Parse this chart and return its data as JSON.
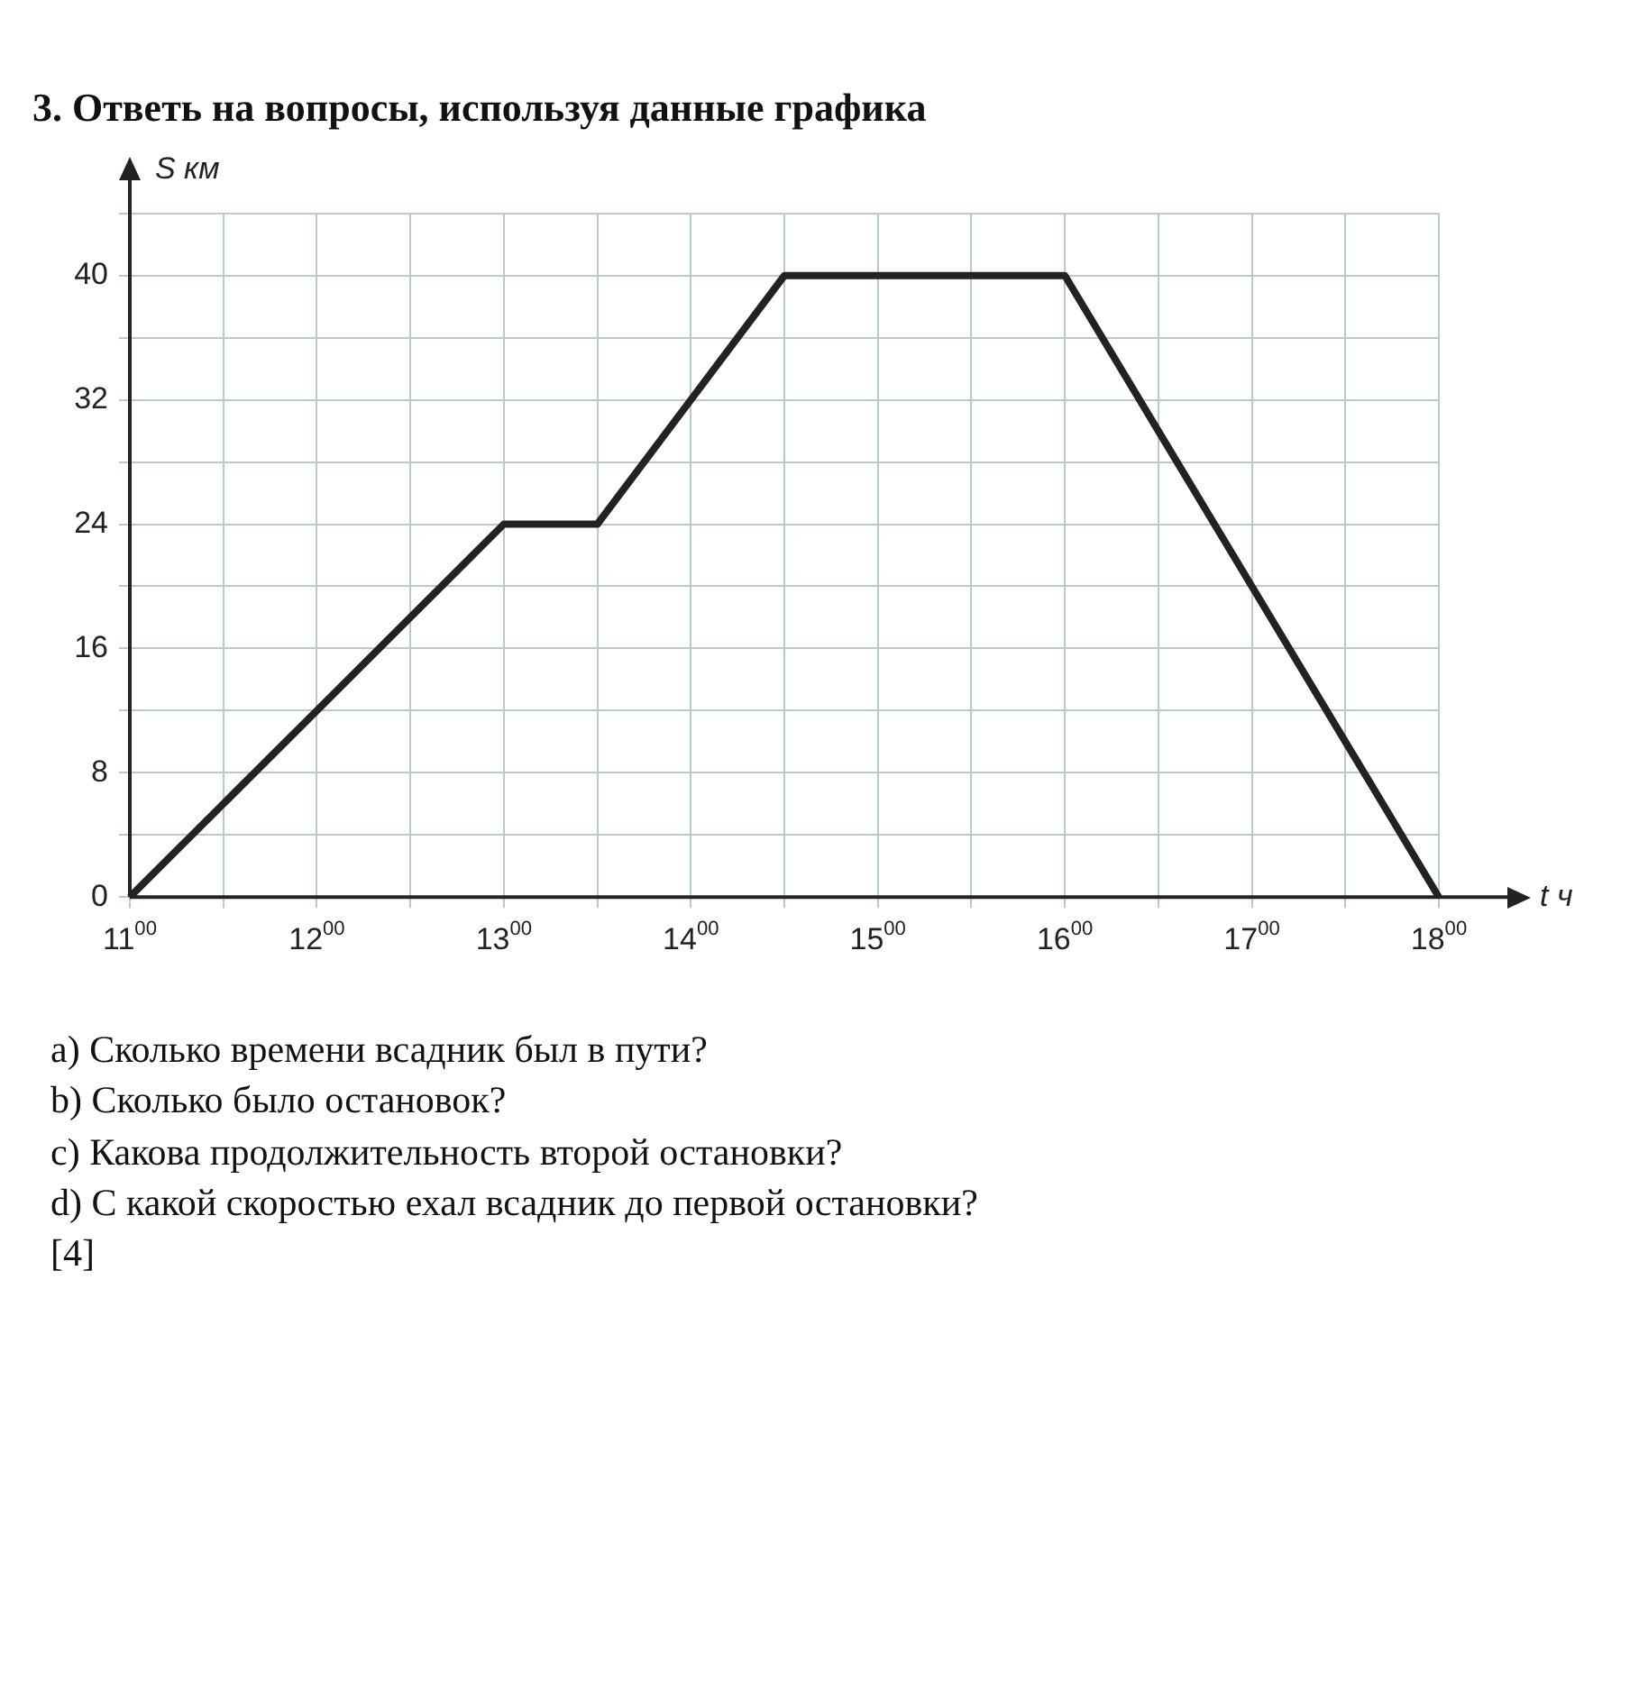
{
  "chart_data": {
    "type": "line",
    "title": "3. Ответь на вопросы, используя данные графика",
    "xlabel": "t ч",
    "ylabel": "S км",
    "categories": [
      "11$^{00}$",
      null,
      "12$^{00}$",
      null,
      "13$^{00}$",
      null,
      "14$^{00}$",
      null,
      "15$^{00}$",
      null,
      "16$^{00}$",
      null,
      "17$^{00}$",
      null,
      "18$^{00}$"
    ],
    "series": [
      {
        "color": "#222222",
        "values": [
          0,
          6,
          12,
          18,
          24,
          24,
          32,
          40,
          40,
          40,
          40,
          30,
          20,
          10,
          0
        ]
      }
    ],
    "ylim": [
      0,
      44
    ],
    "yticks": [
      0,
      {
        "value": 4,
        "label": null
      },
      8,
      {
        "value": 12,
        "label": null
      },
      16,
      {
        "value": 20,
        "label": null
      },
      24,
      {
        "value": 28,
        "label": null
      },
      32,
      {
        "value": 36,
        "label": null
      },
      40,
      {
        "value": 44,
        "label": null
      }
    ],
    "grid": true,
    "legend": false,
    "marker": "none",
    "line_style": "solid",
    "annotations": [
      "a) Сколько времени всадник был в пути?",
      "b) Сколько было остановок?",
      "c) Какова продолжительность второй остановки?",
      "d) С какой скоростью ехал всадник до первой остановки?",
      "[4]"
    ]
  }
}
